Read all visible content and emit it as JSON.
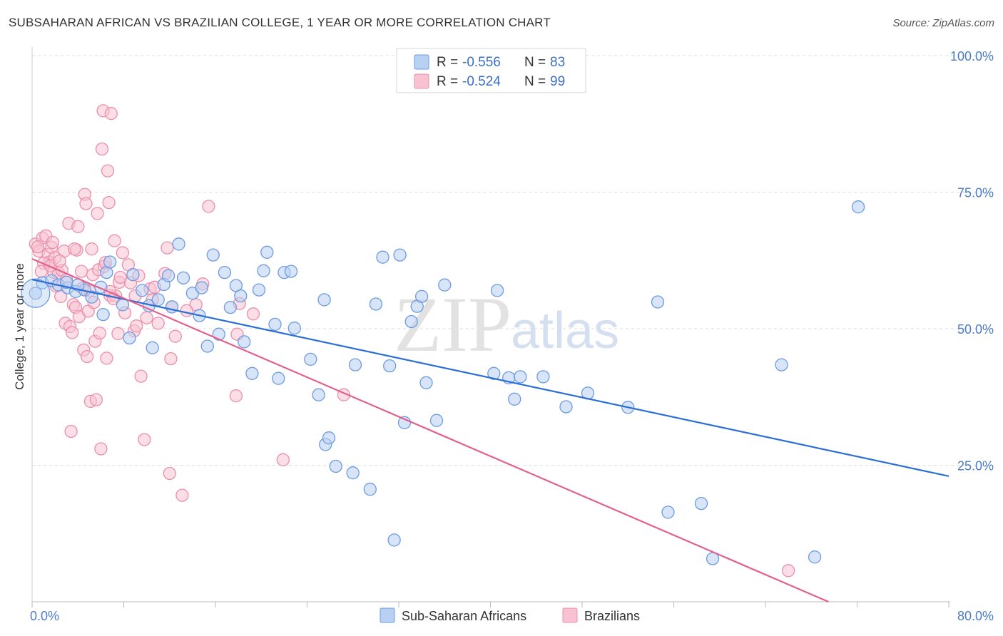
{
  "header": {
    "title": "SUBSAHARAN AFRICAN VS BRAZILIAN COLLEGE, 1 YEAR OR MORE CORRELATION CHART",
    "source": "Source: ZipAtlas.com"
  },
  "watermark": {
    "zip": "ZIP",
    "atlas": "atlas"
  },
  "legend": {
    "rows": [
      {
        "r_label": "R =",
        "r_value": "-0.556",
        "n_label": "N =",
        "n_value": "83"
      },
      {
        "r_label": "R =",
        "r_value": "-0.524",
        "n_label": "N =",
        "n_value": "99"
      }
    ]
  },
  "colors": {
    "blue_fill": "#b8d0f2",
    "blue_stroke": "#6d9be0",
    "blue_line": "#2a6fd4",
    "pink_fill": "#f8c2d2",
    "pink_stroke": "#ec8fac",
    "pink_line": "#e3608e",
    "grid": "#dddddd",
    "tick_text": "#4a7cc9"
  },
  "chart_data": {
    "type": "scatter",
    "title": "SUBSAHARAN AFRICAN VS BRAZILIAN COLLEGE, 1 YEAR OR MORE CORRELATION CHART",
    "xlabel": "",
    "ylabel": "College, 1 year or more",
    "xlim": [
      0,
      80
    ],
    "ylim": [
      0,
      100
    ],
    "x_tick_labels": [
      "0.0%",
      "80.0%"
    ],
    "y_ticks": [
      25,
      50,
      75,
      100
    ],
    "y_tick_labels": [
      "25.0%",
      "50.0%",
      "75.0%",
      "100.0%"
    ],
    "grid": true,
    "legend_position": "top-center",
    "series": [
      {
        "name": "Sub-Saharan Africans",
        "color": "#6d9be0",
        "trend": {
          "x": [
            0,
            80
          ],
          "y": [
            59.0,
            23.0
          ]
        },
        "points": [
          [
            0.3,
            56.5
          ],
          [
            0.9,
            58.4
          ],
          [
            1.7,
            58.8
          ],
          [
            2.3,
            58.0
          ],
          [
            3.1,
            57.5
          ],
          [
            3.8,
            56.8
          ],
          [
            4.6,
            57.1
          ],
          [
            5.2,
            55.8
          ],
          [
            6.5,
            60.3
          ],
          [
            6.8,
            62.2
          ],
          [
            6.2,
            52.6
          ],
          [
            7.9,
            54.4
          ],
          [
            8.5,
            48.3
          ],
          [
            8.8,
            59.9
          ],
          [
            9.6,
            57.0
          ],
          [
            10.2,
            54.2
          ],
          [
            10.5,
            46.5
          ],
          [
            11.0,
            55.3
          ],
          [
            11.5,
            58.1
          ],
          [
            11.9,
            59.7
          ],
          [
            12.2,
            54.0
          ],
          [
            12.8,
            65.5
          ],
          [
            13.2,
            59.3
          ],
          [
            14.0,
            56.5
          ],
          [
            14.8,
            57.5
          ],
          [
            14.6,
            52.4
          ],
          [
            15.3,
            46.8
          ],
          [
            15.8,
            63.5
          ],
          [
            16.3,
            49.0
          ],
          [
            16.8,
            60.3
          ],
          [
            17.3,
            53.9
          ],
          [
            17.8,
            57.9
          ],
          [
            18.2,
            56.0
          ],
          [
            18.5,
            47.6
          ],
          [
            19.2,
            41.8
          ],
          [
            19.8,
            57.1
          ],
          [
            20.2,
            60.6
          ],
          [
            20.5,
            64.0
          ],
          [
            21.2,
            50.8
          ],
          [
            21.5,
            40.9
          ],
          [
            22.0,
            60.3
          ],
          [
            22.6,
            60.5
          ],
          [
            22.9,
            50.1
          ],
          [
            24.3,
            44.4
          ],
          [
            25.0,
            37.9
          ],
          [
            25.5,
            55.3
          ],
          [
            25.6,
            28.8
          ],
          [
            25.9,
            30.0
          ],
          [
            26.5,
            24.8
          ],
          [
            28.0,
            23.6
          ],
          [
            28.2,
            43.4
          ],
          [
            29.5,
            20.6
          ],
          [
            30.0,
            54.5
          ],
          [
            30.6,
            63.1
          ],
          [
            31.2,
            43.2
          ],
          [
            31.6,
            11.3
          ],
          [
            32.1,
            63.5
          ],
          [
            32.5,
            32.8
          ],
          [
            33.1,
            51.3
          ],
          [
            33.6,
            54.1
          ],
          [
            34.0,
            55.9
          ],
          [
            34.4,
            40.1
          ],
          [
            35.3,
            33.2
          ],
          [
            40.3,
            41.8
          ],
          [
            40.6,
            57.0
          ],
          [
            41.6,
            41.0
          ],
          [
            42.1,
            37.1
          ],
          [
            42.6,
            41.2
          ],
          [
            44.6,
            41.2
          ],
          [
            46.6,
            35.7
          ],
          [
            48.5,
            38.2
          ],
          [
            52.0,
            35.6
          ],
          [
            54.6,
            54.9
          ],
          [
            55.5,
            16.4
          ],
          [
            58.4,
            18.0
          ],
          [
            59.4,
            7.9
          ],
          [
            65.4,
            43.4
          ],
          [
            68.3,
            8.2
          ],
          [
            72.1,
            72.3
          ],
          [
            36.0,
            58.0
          ],
          [
            3.0,
            58.5
          ],
          [
            4.0,
            58.0
          ],
          [
            6.0,
            57.6
          ]
        ]
      },
      {
        "name": "Brazilians",
        "color": "#ec8fac",
        "trend": {
          "x": [
            0,
            69.5
          ],
          "y": [
            62.8,
            0
          ]
        },
        "points": [
          [
            0.3,
            65.5
          ],
          [
            0.6,
            64.2
          ],
          [
            0.9,
            66.6
          ],
          [
            1.2,
            67.0
          ],
          [
            1.4,
            63.6
          ],
          [
            1.5,
            62.2
          ],
          [
            1.7,
            64.9
          ],
          [
            1.9,
            60.3
          ],
          [
            2.1,
            57.8
          ],
          [
            2.3,
            60.2
          ],
          [
            2.5,
            55.9
          ],
          [
            2.6,
            60.7
          ],
          [
            2.8,
            64.2
          ],
          [
            2.9,
            51.0
          ],
          [
            3.2,
            69.3
          ],
          [
            3.3,
            50.4
          ],
          [
            3.4,
            31.2
          ],
          [
            3.5,
            49.3
          ],
          [
            3.6,
            54.4
          ],
          [
            3.8,
            53.9
          ],
          [
            3.9,
            64.4
          ],
          [
            4.0,
            68.7
          ],
          [
            4.1,
            52.2
          ],
          [
            4.3,
            60.5
          ],
          [
            4.5,
            46.1
          ],
          [
            4.6,
            74.6
          ],
          [
            4.7,
            72.9
          ],
          [
            4.8,
            44.9
          ],
          [
            4.9,
            53.2
          ],
          [
            5.0,
            56.9
          ],
          [
            5.1,
            36.7
          ],
          [
            5.2,
            64.6
          ],
          [
            5.3,
            59.9
          ],
          [
            5.5,
            47.7
          ],
          [
            5.6,
            37.0
          ],
          [
            5.7,
            71.1
          ],
          [
            5.8,
            60.8
          ],
          [
            5.9,
            49.2
          ],
          [
            6.0,
            28.0
          ],
          [
            6.1,
            82.9
          ],
          [
            6.2,
            89.9
          ],
          [
            6.3,
            61.4
          ],
          [
            6.4,
            62.1
          ],
          [
            6.5,
            44.6
          ],
          [
            6.6,
            78.9
          ],
          [
            6.7,
            73.1
          ],
          [
            6.8,
            56.1
          ],
          [
            6.9,
            89.4
          ],
          [
            7.2,
            66.1
          ],
          [
            7.3,
            56.0
          ],
          [
            7.5,
            49.1
          ],
          [
            7.6,
            58.5
          ],
          [
            7.7,
            59.4
          ],
          [
            7.9,
            63.9
          ],
          [
            8.4,
            61.7
          ],
          [
            8.6,
            58.4
          ],
          [
            8.9,
            49.6
          ],
          [
            9.1,
            50.5
          ],
          [
            9.3,
            59.7
          ],
          [
            9.5,
            41.3
          ],
          [
            9.8,
            29.7
          ],
          [
            10.3,
            57.3
          ],
          [
            10.5,
            55.3
          ],
          [
            10.7,
            57.6
          ],
          [
            11.6,
            60.1
          ],
          [
            11.8,
            64.8
          ],
          [
            12.0,
            23.5
          ],
          [
            12.1,
            44.5
          ],
          [
            12.2,
            54.0
          ],
          [
            13.1,
            19.5
          ],
          [
            14.3,
            54.4
          ],
          [
            14.9,
            58.2
          ],
          [
            15.4,
            72.4
          ],
          [
            17.8,
            37.7
          ],
          [
            17.9,
            49.0
          ],
          [
            18.1,
            54.6
          ],
          [
            19.3,
            52.7
          ],
          [
            21.9,
            26.0
          ],
          [
            27.2,
            37.9
          ],
          [
            66.0,
            5.7
          ],
          [
            1.0,
            62.0
          ],
          [
            2.0,
            63.0
          ],
          [
            3.0,
            59.0
          ],
          [
            4.4,
            57.4
          ],
          [
            5.4,
            54.8
          ],
          [
            0.8,
            60.5
          ],
          [
            1.6,
            61.5
          ],
          [
            2.4,
            62.4
          ],
          [
            6.8,
            56.8
          ],
          [
            7.1,
            55.5
          ],
          [
            8.1,
            52.9
          ],
          [
            9.0,
            56.0
          ],
          [
            10.0,
            52.0
          ],
          [
            11.0,
            51.0
          ],
          [
            12.5,
            48.6
          ],
          [
            13.5,
            53.3
          ],
          [
            0.5,
            65.0
          ],
          [
            1.8,
            65.8
          ],
          [
            3.7,
            64.6
          ]
        ]
      }
    ]
  }
}
